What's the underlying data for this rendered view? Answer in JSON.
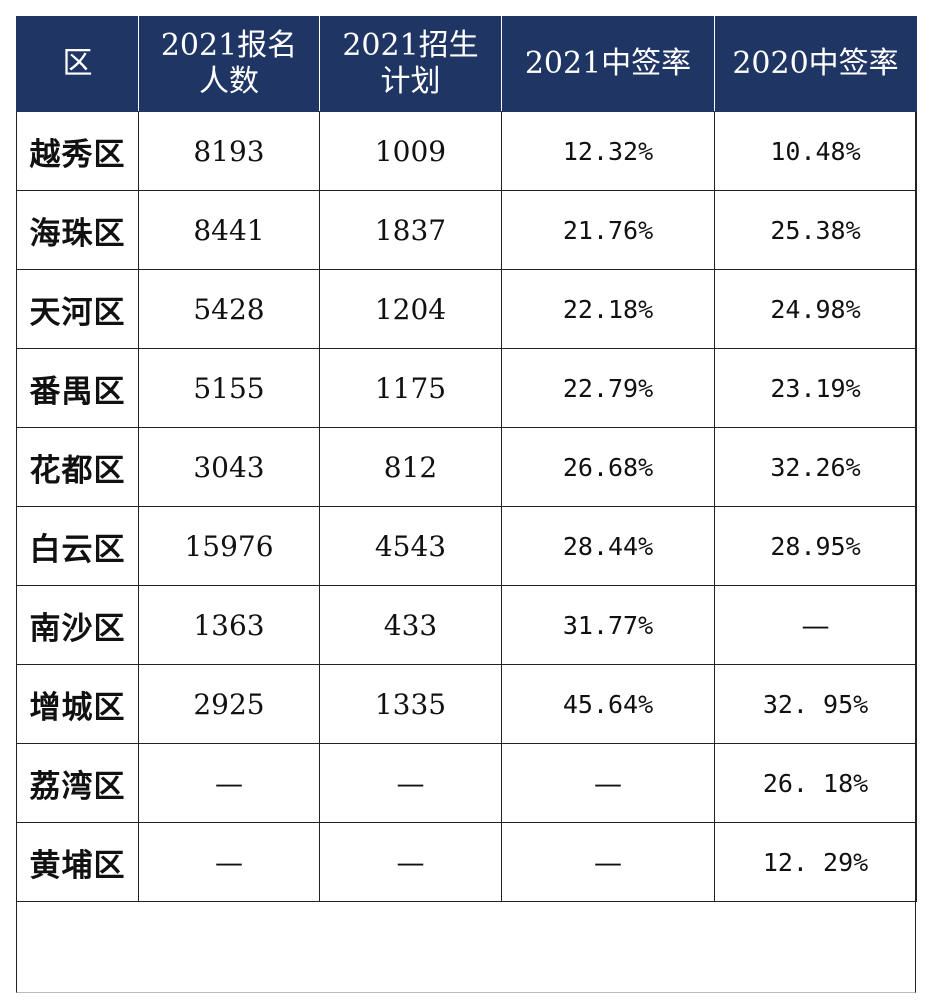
{
  "header": {
    "district": "区",
    "applicants_line1": "2021报名",
    "applicants_line2": "人数",
    "plan_line1": "2021招生",
    "plan_line2": "计划",
    "rate_2021": "2021中签率",
    "rate_2020": "2020中签率"
  },
  "rows": [
    {
      "district": "越秀区",
      "applicants": "8193",
      "plan": "1009",
      "rate_2021": "12.32%",
      "rate_2020": "10.48%"
    },
    {
      "district": "海珠区",
      "applicants": "8441",
      "plan": "1837",
      "rate_2021": "21.76%",
      "rate_2020": "25.38%"
    },
    {
      "district": "天河区",
      "applicants": "5428",
      "plan": "1204",
      "rate_2021": "22.18%",
      "rate_2020": "24.98%"
    },
    {
      "district": "番禺区",
      "applicants": "5155",
      "plan": "1175",
      "rate_2021": "22.79%",
      "rate_2020": "23.19%"
    },
    {
      "district": "花都区",
      "applicants": "3043",
      "plan": "812",
      "rate_2021": "26.68%",
      "rate_2020": "32.26%"
    },
    {
      "district": "白云区",
      "applicants": "15976",
      "plan": "4543",
      "rate_2021": "28.44%",
      "rate_2020": "28.95%"
    },
    {
      "district": "南沙区",
      "applicants": "1363",
      "plan": "433",
      "rate_2021": "31.77%",
      "rate_2020": "—"
    },
    {
      "district": "增城区",
      "applicants": "2925",
      "plan": "1335",
      "rate_2021": "45.64%",
      "rate_2020": "32. 95%"
    },
    {
      "district": "荔湾区",
      "applicants": "—",
      "plan": "—",
      "rate_2021": "—",
      "rate_2020": "26. 18%"
    },
    {
      "district": "黄埔区",
      "applicants": "—",
      "plan": "—",
      "rate_2021": "—",
      "rate_2020": "12. 29%"
    }
  ]
}
